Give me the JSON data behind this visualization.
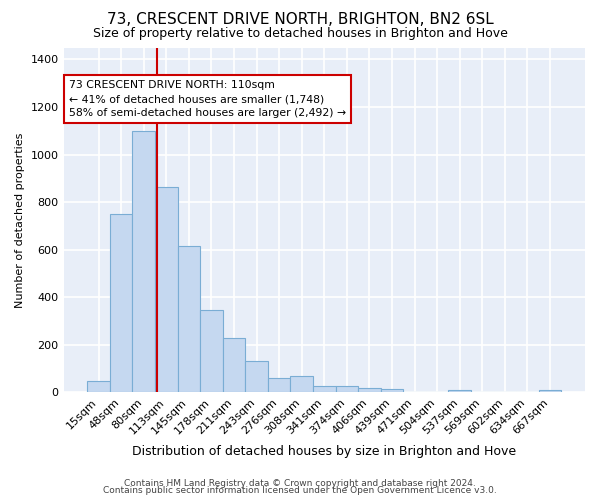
{
  "title": "73, CRESCENT DRIVE NORTH, BRIGHTON, BN2 6SL",
  "subtitle": "Size of property relative to detached houses in Brighton and Hove",
  "xlabel": "Distribution of detached houses by size in Brighton and Hove",
  "ylabel": "Number of detached properties",
  "footer1": "Contains HM Land Registry data © Crown copyright and database right 2024.",
  "footer2": "Contains public sector information licensed under the Open Government Licence v3.0.",
  "bar_labels": [
    "15sqm",
    "48sqm",
    "80sqm",
    "113sqm",
    "145sqm",
    "178sqm",
    "211sqm",
    "243sqm",
    "276sqm",
    "308sqm",
    "341sqm",
    "374sqm",
    "406sqm",
    "439sqm",
    "471sqm",
    "504sqm",
    "537sqm",
    "569sqm",
    "602sqm",
    "634sqm",
    "667sqm"
  ],
  "bar_values": [
    50,
    750,
    1100,
    865,
    615,
    345,
    228,
    133,
    62,
    70,
    28,
    28,
    20,
    13,
    0,
    0,
    12,
    0,
    0,
    0,
    12
  ],
  "bar_color": "#c5d8f0",
  "bar_edgecolor": "#7aadd4",
  "figure_facecolor": "#ffffff",
  "axes_facecolor": "#e8eef8",
  "grid_color": "#ffffff",
  "vline_x": 2.58,
  "vline_color": "#cc0000",
  "annotation_text": "73 CRESCENT DRIVE NORTH: 110sqm\n← 41% of detached houses are smaller (1,748)\n58% of semi-detached houses are larger (2,492) →",
  "annotation_box_facecolor": "#ffffff",
  "annotation_box_edgecolor": "#cc0000",
  "ylim": [
    0,
    1450
  ],
  "yticks": [
    0,
    200,
    400,
    600,
    800,
    1000,
    1200,
    1400
  ],
  "title_fontsize": 11,
  "subtitle_fontsize": 9,
  "ylabel_fontsize": 8,
  "xlabel_fontsize": 9,
  "tick_fontsize": 8,
  "footer_fontsize": 6.5
}
